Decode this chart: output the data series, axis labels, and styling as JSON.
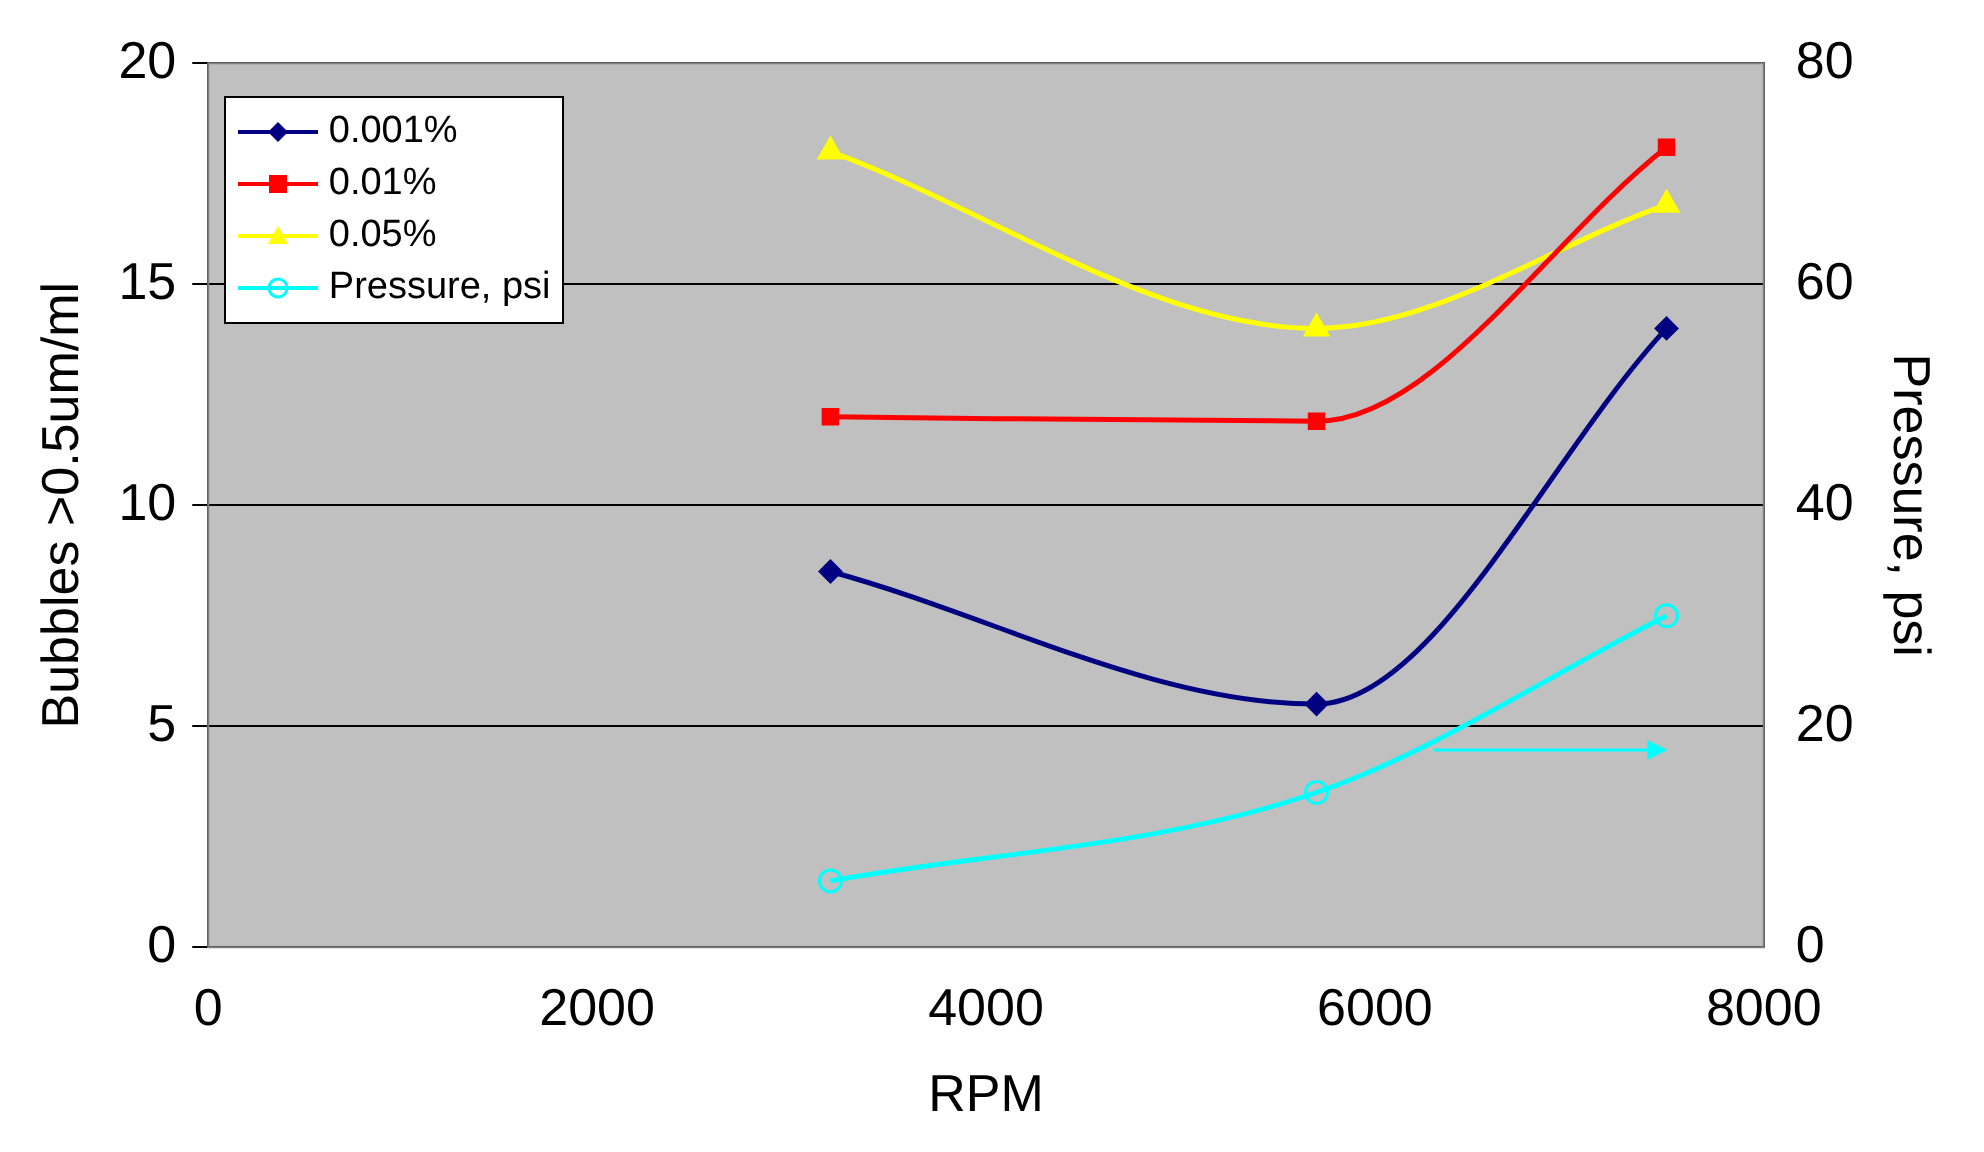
{
  "chart_data": {
    "type": "line",
    "xlabel": "RPM",
    "ylabel": "Bubbles >0.5um/ml",
    "y2label": "Pressure, psi",
    "x": [
      3200,
      5700,
      7500
    ],
    "series": [
      {
        "name": "0.001%",
        "color": "#000080",
        "marker": "diamond",
        "values": [
          8.5,
          5.5,
          14
        ]
      },
      {
        "name": "0.01%",
        "color": "#ff0000",
        "marker": "square",
        "values": [
          12,
          11.9,
          18.1
        ]
      },
      {
        "name": "0.05%",
        "color": "#ffff00",
        "marker": "triangle",
        "values": [
          18,
          14,
          16.8
        ]
      },
      {
        "name": "Pressure, psi",
        "color": "#00ffff",
        "marker": "circle",
        "axis": "y2",
        "values": [
          6,
          14,
          30
        ]
      }
    ],
    "xlim": [
      0,
      8000
    ],
    "xticks": [
      0,
      2000,
      4000,
      6000,
      8000
    ],
    "ylim": [
      0,
      20
    ],
    "yticks": [
      0,
      5,
      10,
      15,
      20
    ],
    "y2lim": [
      0,
      80
    ],
    "y2ticks": [
      0,
      20,
      40,
      60,
      80
    ],
    "grid": "y",
    "legend": "top left"
  }
}
